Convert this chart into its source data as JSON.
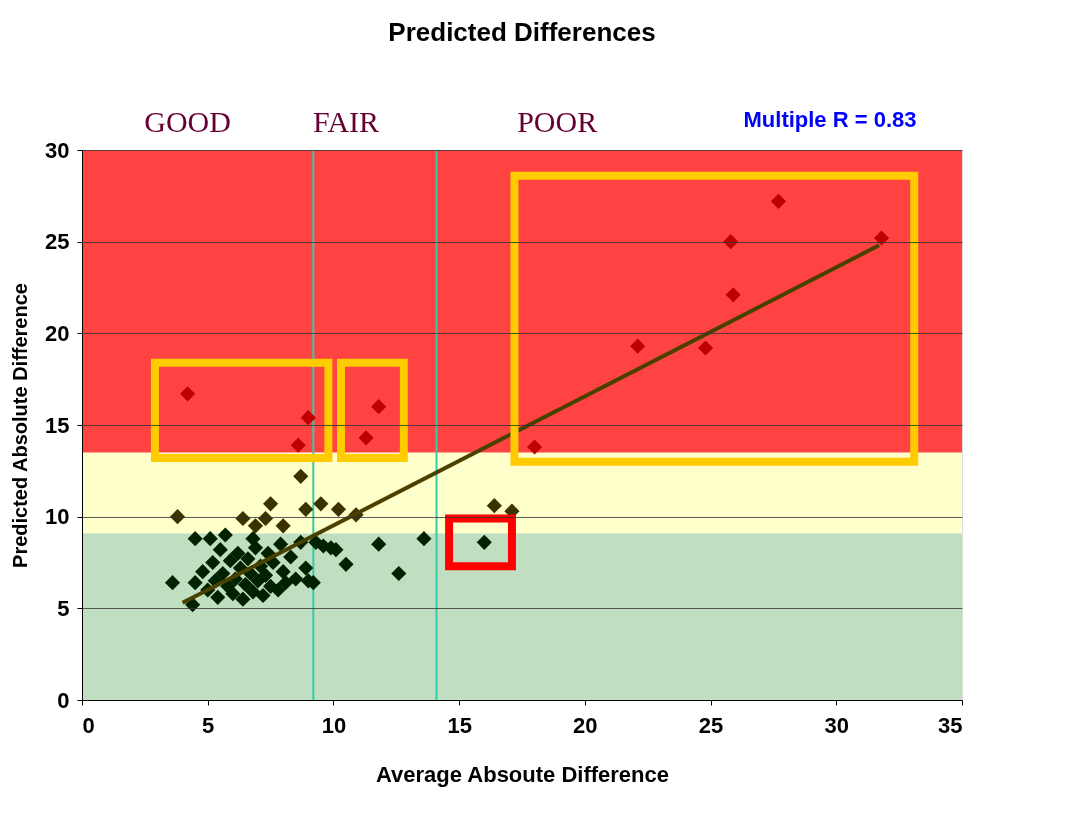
{
  "chart_data": {
    "type": "scatter",
    "title": "Predicted Differences",
    "xlabel": "Average Absoute Difference",
    "ylabel": "Predicted Absolute Difference",
    "annotations": [
      "GOOD",
      "FAIR",
      "POOR",
      "Multiple R = 0.83"
    ],
    "xlim": [
      0,
      35
    ],
    "xticks": [
      0,
      5,
      10,
      15,
      20,
      25,
      30,
      35
    ],
    "ylim": [
      0,
      30
    ],
    "yticks": [
      0,
      5,
      10,
      15,
      20,
      25,
      30
    ],
    "grid": "y",
    "marker": "diamond",
    "bands": [
      {
        "axis": "y",
        "from": 0,
        "to": 9.1,
        "color": "#c0dfc0"
      },
      {
        "axis": "y",
        "from": 9.1,
        "to": 13.5,
        "color": "#ffffcc"
      },
      {
        "axis": "y",
        "from": 13.5,
        "to": 30,
        "color": "#ff4343"
      }
    ],
    "ref_lines": [
      {
        "axis": "x",
        "value": 9.2,
        "color": "#33ccaa"
      },
      {
        "axis": "x",
        "value": 14.1,
        "color": "#33ccaa"
      }
    ],
    "series": [
      {
        "color": "#c00000",
        "x": [
          4.2,
          9.0,
          8.6,
          11.8,
          11.3,
          27.7,
          25.8,
          31.8,
          25.9,
          22.1,
          24.8,
          18.0
        ],
        "values": [
          16.7,
          15.4,
          13.9,
          16.0,
          14.3,
          27.2,
          25.0,
          25.2,
          22.1,
          19.3,
          19.2,
          13.8
        ]
      },
      {
        "color": "#3a3300",
        "x": [
          3.8,
          8.7,
          7.5,
          6.4,
          8.9,
          9.5,
          10.2,
          10.9,
          16.4,
          17.1,
          6.9,
          8.0,
          7.3
        ],
        "values": [
          10.0,
          12.2,
          10.7,
          9.9,
          10.4,
          10.7,
          10.4,
          10.1,
          10.6,
          10.3,
          9.5,
          9.5,
          9.9
        ]
      },
      {
        "color": "#002200",
        "x": [
          11.8,
          13.6,
          12.6,
          16.0,
          10.5,
          10.1,
          4.5,
          4.4,
          3.6,
          9.9,
          9.2,
          4.5,
          4.8,
          5.0,
          5.2,
          5.3,
          5.4,
          5.5,
          5.6,
          5.8,
          5.9,
          6.0,
          6.1,
          6.2,
          6.3,
          6.4,
          6.5,
          6.6,
          6.7,
          6.8,
          6.9,
          7.0,
          7.1,
          7.2,
          7.3,
          7.4,
          7.5,
          7.6,
          7.8,
          7.9,
          8.0,
          8.1,
          8.3,
          8.5,
          8.7,
          8.9,
          9.0,
          9.3,
          9.6,
          5.7,
          6.8,
          5.1
        ],
        "values": [
          8.5,
          8.8,
          6.9,
          8.6,
          7.4,
          8.2,
          8.8,
          5.2,
          6.4,
          8.3,
          6.4,
          6.4,
          7.0,
          6.0,
          7.5,
          6.5,
          5.6,
          8.2,
          6.9,
          6.2,
          7.6,
          5.8,
          6.6,
          8.0,
          7.2,
          5.5,
          6.3,
          7.7,
          6.9,
          5.9,
          8.3,
          6.5,
          7.3,
          5.7,
          6.8,
          8.0,
          6.2,
          7.5,
          6.0,
          8.5,
          7.0,
          6.4,
          7.8,
          6.6,
          8.6,
          7.2,
          6.5,
          8.6,
          8.4,
          9.0,
          8.8,
          8.8
        ]
      },
      {
        "type": "line",
        "marker": "none",
        "color": "#4a4000",
        "x": [
          4.0,
          31.7
        ],
        "values": [
          5.3,
          24.8
        ]
      }
    ]
  }
}
